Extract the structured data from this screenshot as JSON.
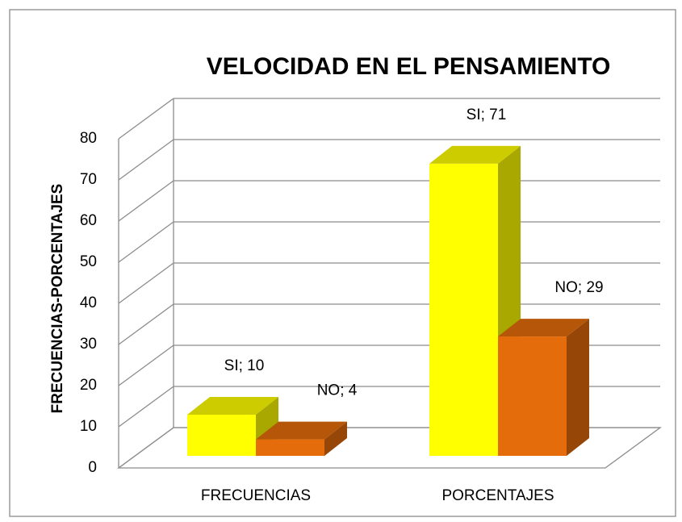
{
  "chart_data": {
    "type": "bar3d",
    "title": "VELOCIDAD EN EL PENSAMIENTO",
    "y_label": "FRECUENCIAS-PORCENTAJES",
    "categories": [
      "FRECUENCIAS",
      "PORCENTAJES"
    ],
    "series": [
      {
        "name": "SI",
        "color": "#ffff00",
        "values": [
          10,
          71
        ],
        "value_labels": [
          "SI; 10",
          "SI; 71"
        ]
      },
      {
        "name": "NO",
        "color": "#e46c0a",
        "values": [
          4,
          29
        ],
        "value_labels": [
          "NO; 4",
          "NO; 29"
        ]
      }
    ],
    "ylim": [
      0,
      80
    ],
    "yticks": [
      0,
      10,
      20,
      30,
      40,
      50,
      60,
      70,
      80
    ],
    "grid": true
  }
}
